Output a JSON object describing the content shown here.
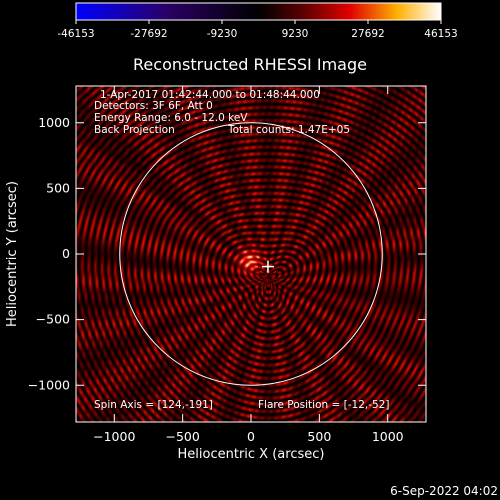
{
  "colorbar": {
    "ticks": [
      "-46153",
      "-27692",
      "-9230",
      "9230",
      "27692",
      "46153"
    ],
    "range": [
      -46153,
      46153
    ],
    "colormap": [
      "#0000ff",
      "#000000",
      "#ff0000",
      "#ffff00",
      "#ffffff"
    ]
  },
  "chart_data": {
    "type": "heatmap",
    "title": "Reconstructed RHESSI Image",
    "xlabel": "Heliocentric X (arcsec)",
    "ylabel": "Heliocentric Y (arcsec)",
    "xlim": [
      -1280,
      1280
    ],
    "ylim": [
      -1280,
      1280
    ],
    "xticks": [
      -1000,
      -500,
      0,
      500,
      1000
    ],
    "yticks": [
      -1000,
      -500,
      0,
      500,
      1000
    ],
    "xtick_labels": [
      "−1000",
      "−500",
      "0",
      "500",
      "1000"
    ],
    "ytick_labels": [
      "−1000",
      "−500",
      "0",
      "500",
      "1000"
    ],
    "solar_limb_radius": 960,
    "flare_position": [
      -12,
      -52
    ],
    "spin_axis": [
      124,
      -191
    ],
    "colors": {
      "limb": "#ffffff",
      "marker": "#ffffff",
      "axes": "#ffffff"
    }
  },
  "annotations": {
    "time_range": "1-Apr-2017 01:42:44.000 to 01:48:44.000",
    "detectors": "Detectors: 3F 6F, Att 0",
    "energy": "Energy Range: 6.0 - 12.0 keV",
    "method": "Back Projection",
    "total_counts": "Total counts: 1.47E+05",
    "spin_axis": "Spin Axis = [124,-191]",
    "flare_position": "Flare Position = [-12,-52]"
  },
  "footer": {
    "date": "6-Sep-2022 04:02"
  }
}
